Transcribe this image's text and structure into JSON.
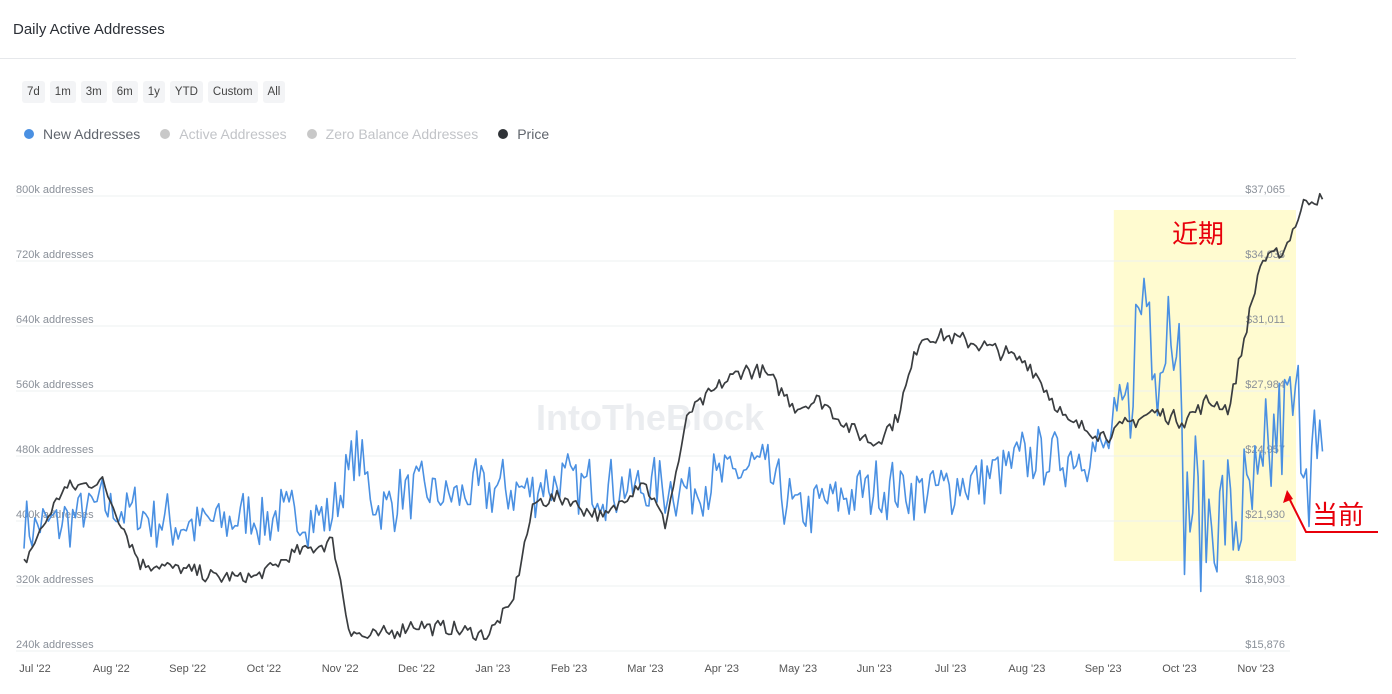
{
  "page": {
    "title": "Daily Active Addresses"
  },
  "range_buttons": [
    "7d",
    "1m",
    "3m",
    "6m",
    "1y",
    "YTD",
    "Custom",
    "All"
  ],
  "legend": [
    {
      "label": "New Addresses",
      "color": "#4a90e2",
      "active": true
    },
    {
      "label": "Active Addresses",
      "color": "#c8c8c8",
      "active": false
    },
    {
      "label": "Zero Balance Addresses",
      "color": "#c8c8c8",
      "active": false
    },
    {
      "label": "Price",
      "color": "#2f3337",
      "active": true
    }
  ],
  "watermark": "IntoTheBlock",
  "annotations": {
    "recent": "近期",
    "current": "当前"
  },
  "colors": {
    "new_addresses": "#4a90e2",
    "price": "#3a3d40",
    "highlight": "#fffbd0",
    "annotation": "#e8000b"
  },
  "chart_data": {
    "type": "line",
    "title": "Daily Active Addresses",
    "x_tick_labels": [
      "Jul '22",
      "Aug '22",
      "Sep '22",
      "Oct '22",
      "Nov '22",
      "Dec '22",
      "Jan '23",
      "Feb '23",
      "Mar '23",
      "Apr '23",
      "May '23",
      "Jun '23",
      "Jul '23",
      "Aug '23",
      "Sep '23",
      "Oct '23",
      "Nov '23"
    ],
    "y_left_tick_labels": [
      "800k addresses",
      "720k addresses",
      "640k addresses",
      "560k addresses",
      "480k addresses",
      "400k addresses",
      "320k addresses",
      "240k addresses"
    ],
    "y_left_range": [
      240000,
      800000
    ],
    "y_right_tick_labels": [
      "$37,065",
      "$34,038",
      "$31,011",
      "$27,984",
      "$24,957",
      "$21,930",
      "$18,903",
      "$15,876"
    ],
    "y_right_range": [
      15876,
      37065
    ],
    "grid": "horizontal",
    "legend_position": "top-left",
    "highlight_range_months": [
      14.1,
      16.8
    ],
    "series": [
      {
        "name": "New Addresses",
        "axis": "left",
        "months": [
          0,
          0.5,
          1,
          1.5,
          2,
          2.5,
          3,
          3.5,
          4,
          4.3,
          4.6,
          5,
          5.5,
          6,
          6.5,
          7,
          7.5,
          8,
          8.5,
          9,
          9.5,
          10,
          10.5,
          11,
          11.5,
          12,
          12.5,
          13,
          13.5,
          14,
          14.3,
          14.5,
          14.7,
          14.9,
          15,
          15.3,
          15.6,
          16,
          16.2,
          16.4,
          16.6,
          16.8
        ],
        "values": [
          390000,
          400000,
          420000,
          410000,
          395000,
          400000,
          405000,
          405000,
          410000,
          480000,
          410000,
          440000,
          430000,
          440000,
          440000,
          450000,
          440000,
          440000,
          440000,
          450000,
          470000,
          410000,
          430000,
          440000,
          440000,
          440000,
          460000,
          480000,
          480000,
          490000,
          560000,
          700000,
          600000,
          690000,
          430000,
          410000,
          400000,
          420000,
          520000,
          540000,
          500000,
          440000
        ]
      },
      {
        "name": "Price",
        "axis": "right",
        "months": [
          0,
          0.5,
          1,
          1.5,
          2,
          2.5,
          3,
          3.5,
          4,
          4.2,
          4.4,
          4.7,
          5,
          5.5,
          6,
          6.3,
          6.6,
          7,
          7.5,
          8,
          8.3,
          8.6,
          9,
          9.3,
          9.6,
          10,
          10.3,
          10.6,
          11,
          11.3,
          11.6,
          12,
          12.5,
          13,
          13.5,
          14,
          14.3,
          14.6,
          15,
          15.3,
          15.6,
          16,
          16.3,
          16.6,
          16.8
        ],
        "values": [
          20000,
          23400,
          23800,
          20000,
          19700,
          19300,
          19300,
          20400,
          21000,
          17000,
          16500,
          16700,
          17100,
          16900,
          16600,
          18000,
          22800,
          23000,
          22000,
          23900,
          21800,
          27000,
          28200,
          29000,
          28800,
          27200,
          27600,
          26500,
          25500,
          26800,
          30500,
          30500,
          30000,
          29300,
          26500,
          25900,
          26500,
          27000,
          26600,
          27500,
          27200,
          34000,
          34500,
          37000,
          36800
        ]
      }
    ]
  }
}
